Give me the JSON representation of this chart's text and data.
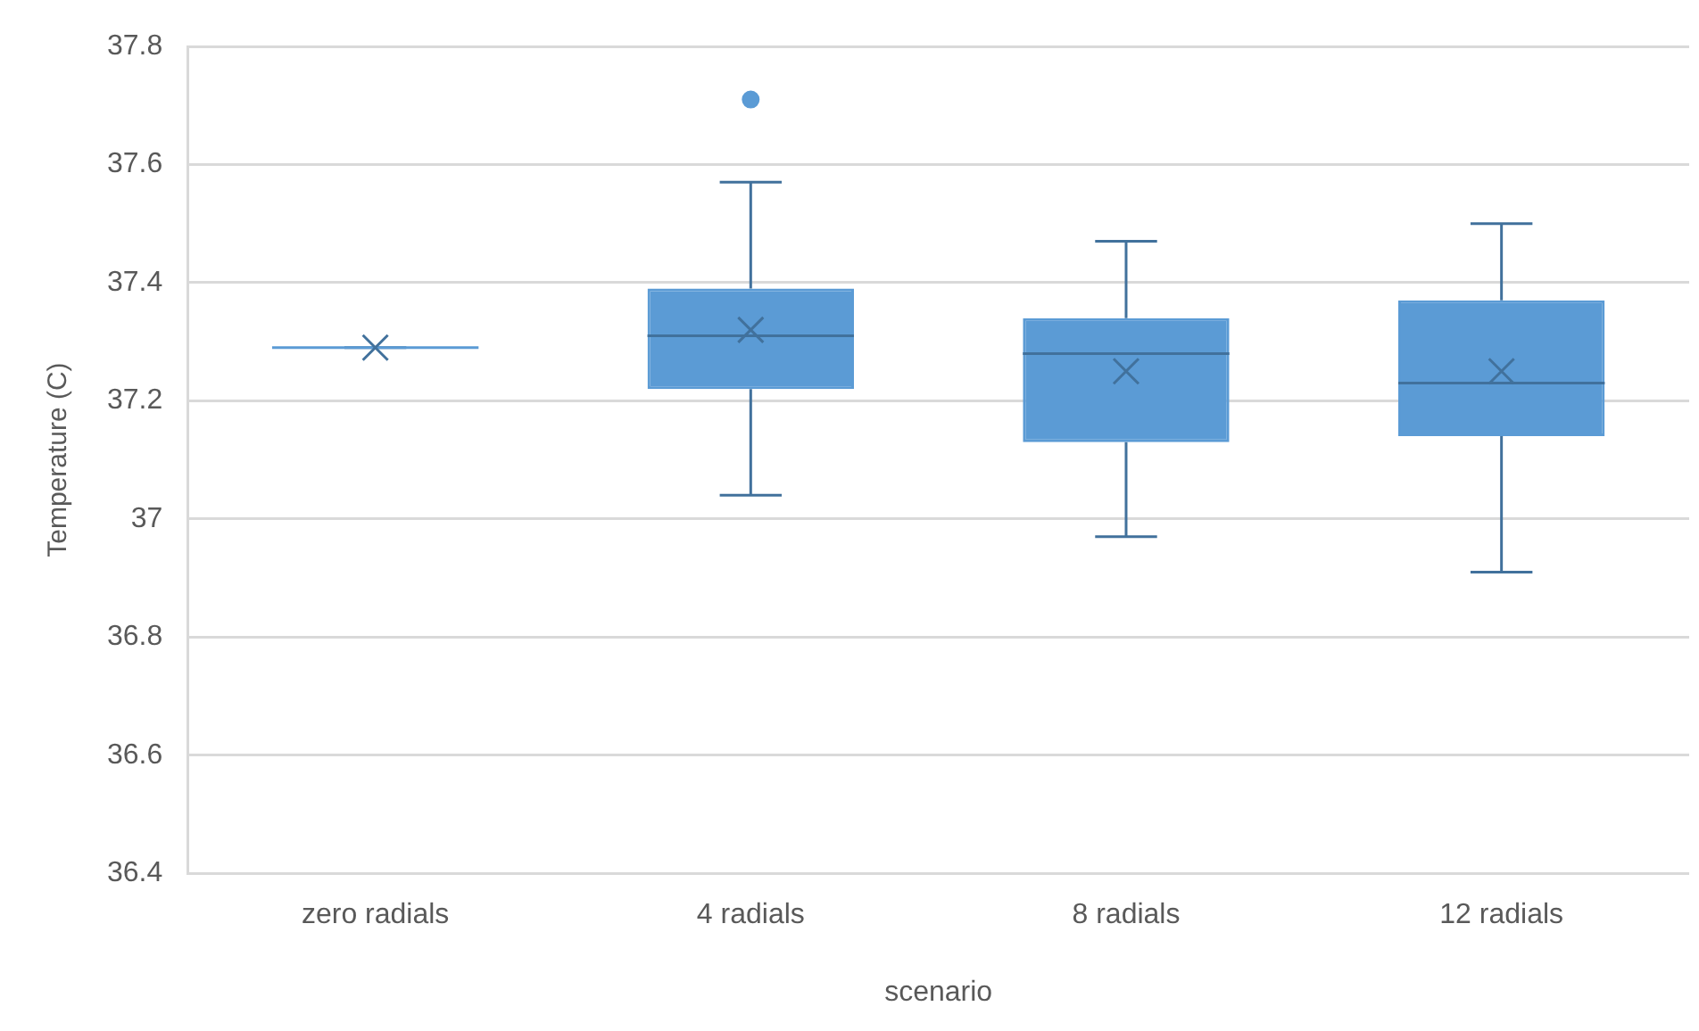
{
  "chart_data": {
    "type": "box",
    "xlabel": "scenario",
    "ylabel": "Temperature (C)",
    "categories": [
      "zero radials",
      "4 radials",
      "8 radials",
      "12 radials"
    ],
    "boxes": [
      {
        "low": 37.29,
        "q1": 37.29,
        "median": 37.29,
        "q3": 37.29,
        "high": 37.29,
        "mean": 37.29
      },
      {
        "low": 37.04,
        "q1": 37.22,
        "median": 37.31,
        "q3": 37.39,
        "high": 37.57,
        "mean": 37.32,
        "outliers": [
          37.71
        ]
      },
      {
        "low": 36.97,
        "q1": 37.13,
        "median": 37.28,
        "q3": 37.34,
        "high": 37.47,
        "mean": 37.25
      },
      {
        "low": 36.91,
        "q1": 37.14,
        "median": 37.23,
        "q3": 37.37,
        "high": 37.5,
        "mean": 37.25
      }
    ],
    "color": "#5b9bd5",
    "ylim": [
      36.4,
      37.8
    ],
    "yticks": [
      36.4,
      36.6,
      36.8,
      37,
      37.2,
      37.4,
      37.6,
      37.8
    ],
    "grid": "y",
    "legend": false,
    "marker": "cross"
  }
}
